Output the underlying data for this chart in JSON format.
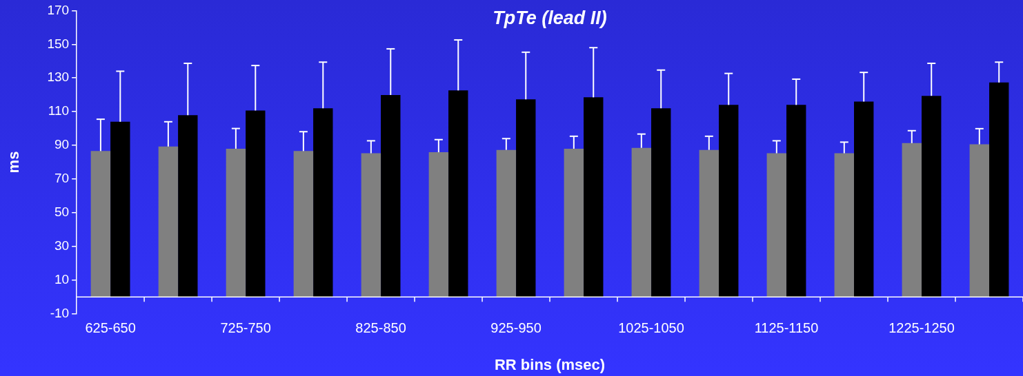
{
  "chart_data": {
    "type": "bar",
    "title": "TpTe (lead II)",
    "xlabel": "RR bins (msec)",
    "ylabel": "ms",
    "categories": [
      "625-650",
      null,
      "725-750",
      null,
      "825-850",
      null,
      "925-950",
      null,
      "1025-1050",
      null,
      "1125-1150",
      null,
      "1225-1250",
      null
    ],
    "series": [
      {
        "color": "#808080",
        "values": [
          86.6,
          89.3,
          88.0,
          86.6,
          85.3,
          85.9,
          87.3,
          88.0,
          88.5,
          87.3,
          85.3,
          85.3,
          91.3,
          90.6
        ],
        "errors": [
          [
            86.6,
            105.5
          ],
          [
            89.3,
            104.0
          ],
          [
            88.0,
            100.0
          ],
          [
            86.6,
            98.1
          ],
          [
            85.3,
            92.7
          ],
          [
            85.9,
            93.4
          ],
          [
            87.3,
            94.0
          ],
          [
            88.0,
            95.4
          ],
          [
            88.5,
            96.7
          ],
          [
            87.3,
            95.4
          ],
          [
            85.3,
            92.7
          ],
          [
            85.3,
            91.9
          ],
          [
            91.3,
            98.7
          ],
          [
            90.6,
            99.9
          ]
        ]
      },
      {
        "color": "#000000",
        "values": [
          104.0,
          107.9,
          110.7,
          112.0,
          119.9,
          122.6,
          117.3,
          118.5,
          112.0,
          114.0,
          114.0,
          116.0,
          119.4,
          127.3
        ],
        "errors": [
          [
            104.0,
            134.0
          ],
          [
            107.9,
            138.7
          ],
          [
            110.7,
            137.4
          ],
          [
            112.0,
            139.4
          ],
          [
            119.9,
            147.3
          ],
          [
            122.6,
            152.6
          ],
          [
            117.3,
            145.3
          ],
          [
            118.5,
            148.0
          ],
          [
            112.0,
            134.7
          ],
          [
            114.0,
            132.7
          ],
          [
            114.0,
            129.3
          ],
          [
            116.0,
            133.3
          ],
          [
            119.4,
            138.7
          ],
          [
            127.3,
            139.4
          ]
        ]
      }
    ],
    "ylim": [
      -10,
      170
    ],
    "yticks": [
      -10,
      10,
      30,
      50,
      70,
      90,
      110,
      130,
      150,
      170
    ],
    "grid": false,
    "legend": false
  }
}
